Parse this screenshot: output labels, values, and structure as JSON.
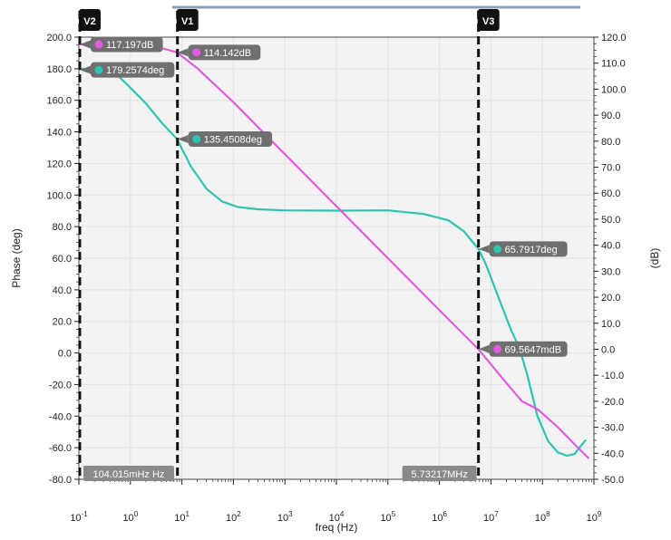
{
  "chart_data": {
    "type": "line",
    "xlabel": "freq (Hz)",
    "ylabel_left": "Phase (deg)",
    "ylabel_right": "(dB)",
    "x_scale": "log",
    "xlim": [
      0.1,
      1000000000
    ],
    "ylim_left": [
      -80,
      200
    ],
    "ylim_right": [
      -50,
      120
    ],
    "x_ticks": [
      {
        "value": 0.1,
        "base": "10",
        "exp": "-1"
      },
      {
        "value": 1,
        "base": "10",
        "exp": "0"
      },
      {
        "value": 10,
        "base": "10",
        "exp": "1"
      },
      {
        "value": 100,
        "base": "10",
        "exp": "2"
      },
      {
        "value": 1000,
        "base": "10",
        "exp": "3"
      },
      {
        "value": 10000,
        "base": "10",
        "exp": "4"
      },
      {
        "value": 100000,
        "base": "10",
        "exp": "5"
      },
      {
        "value": 1000000,
        "base": "10",
        "exp": "6"
      },
      {
        "value": 10000000,
        "base": "10",
        "exp": "7"
      },
      {
        "value": 100000000,
        "base": "10",
        "exp": "8"
      },
      {
        "value": 1000000000,
        "base": "10",
        "exp": "9"
      }
    ],
    "y_ticks_left": [
      "200.0",
      "180.0",
      "160.0",
      "140.0",
      "120.0",
      "100.0",
      "80.0",
      "60.0",
      "40.0",
      "20.0",
      "0.0",
      "-20.0",
      "-40.0",
      "-60.0",
      "-80.0"
    ],
    "y_ticks_right": [
      "120.0",
      "110.0",
      "100.0",
      "90.0",
      "80.0",
      "70.0",
      "60.0",
      "50.0",
      "40.0",
      "30.0",
      "20.0",
      "10.0",
      "0.0",
      "-10.0",
      "-20.0",
      "-30.0",
      "-40.0",
      "-50.0"
    ],
    "grid": true,
    "series": [
      {
        "axis": "left",
        "color": "#2ec4b0",
        "points": [
          [
            0.1,
            180
          ],
          [
            0.2,
            179.6
          ],
          [
            0.35,
            178.5
          ],
          [
            0.6,
            175
          ],
          [
            1,
            168
          ],
          [
            2,
            158
          ],
          [
            4,
            146
          ],
          [
            8,
            135.5
          ],
          [
            15,
            118
          ],
          [
            30,
            104
          ],
          [
            60,
            96
          ],
          [
            120,
            92.5
          ],
          [
            300,
            91
          ],
          [
            1000,
            90.3
          ],
          [
            10000,
            90.1
          ],
          [
            100000,
            90.3
          ],
          [
            500000,
            88
          ],
          [
            1500000,
            84
          ],
          [
            3000000,
            77
          ],
          [
            5700000,
            66
          ],
          [
            8000000,
            56
          ],
          [
            12000000,
            41
          ],
          [
            18000000,
            26
          ],
          [
            25000000,
            14
          ],
          [
            35000000,
            4
          ],
          [
            50000000,
            -13
          ],
          [
            80000000,
            -40
          ],
          [
            130000000,
            -56
          ],
          [
            200000000,
            -63
          ],
          [
            300000000,
            -65
          ],
          [
            420000000,
            -64
          ],
          [
            550000000,
            -59
          ],
          [
            700000000,
            -55
          ]
        ]
      },
      {
        "axis": "right",
        "color": "#e05ce0",
        "points": [
          [
            0.1,
            117.197
          ],
          [
            1,
            117.19
          ],
          [
            3,
            116.5
          ],
          [
            8,
            114.142
          ],
          [
            20,
            108
          ],
          [
            100,
            95
          ],
          [
            1000,
            75
          ],
          [
            10000,
            55
          ],
          [
            100000,
            35
          ],
          [
            1000000,
            15
          ],
          [
            5700000,
            0.07
          ],
          [
            20000000,
            -13
          ],
          [
            40000000,
            -20
          ],
          [
            80000000,
            -23
          ],
          [
            200000000,
            -30
          ],
          [
            500000000,
            -38
          ],
          [
            800000000,
            -42
          ]
        ]
      }
    ],
    "markers": [
      {
        "label": "V2",
        "x": 0.104015,
        "readout": "104.015mHz Hz"
      },
      {
        "label": "V1",
        "x": 8.2
      },
      {
        "label": "V3",
        "x": 5732170,
        "readout": "5.73217MHz"
      }
    ],
    "annotations": [
      {
        "text": "117.197dB",
        "x": 0.104015,
        "y": 117.197,
        "axis": "right",
        "color": "#e05ce0"
      },
      {
        "text": "179.2574deg",
        "x": 0.104015,
        "y": 179.2574,
        "axis": "left",
        "color": "#2ec4b0"
      },
      {
        "text": "114.142dB",
        "x": 8.2,
        "y": 114.142,
        "axis": "right",
        "color": "#e05ce0"
      },
      {
        "text": "135.4508deg",
        "x": 8.2,
        "y": 135.4508,
        "axis": "left",
        "color": "#2ec4b0"
      },
      {
        "text": "65.7917deg",
        "x": 5732170,
        "y": 65.7917,
        "axis": "left",
        "color": "#2ec4b0"
      },
      {
        "text": "69.5647mdB",
        "x": 5732170,
        "y": 0.0696,
        "axis": "right",
        "color": "#e05ce0"
      }
    ]
  }
}
